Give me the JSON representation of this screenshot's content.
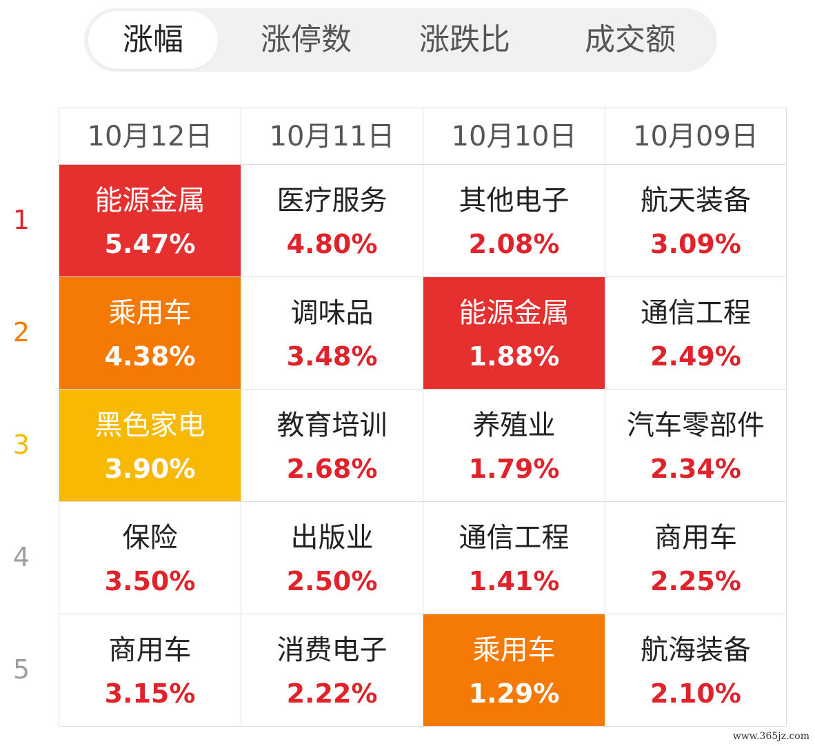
{
  "tabs": [
    {
      "label": "涨幅",
      "active": true
    },
    {
      "label": "涨停数",
      "active": false
    },
    {
      "label": "涨跌比",
      "active": false
    },
    {
      "label": "成交额",
      "active": false
    }
  ],
  "columns": [
    "10月12日",
    "10月11日",
    "10月10日",
    "10月09日"
  ],
  "ranks": [
    {
      "label": "1",
      "color": "#e0232b"
    },
    {
      "label": "2",
      "color": "#f57c00"
    },
    {
      "label": "3",
      "color": "#f6b800"
    },
    {
      "label": "4",
      "color": "#9e9e9e"
    },
    {
      "label": "5",
      "color": "#9e9e9e"
    }
  ],
  "highlight_colors": {
    "red": "#e5302f",
    "orange": "#f57a05",
    "yellow": "#f7b904"
  },
  "rows": [
    [
      {
        "name": "能源金属",
        "pct": "5.47%",
        "highlight": "red"
      },
      {
        "name": "医疗服务",
        "pct": "4.80%"
      },
      {
        "name": "其他电子",
        "pct": "2.08%"
      },
      {
        "name": "航天装备",
        "pct": "3.09%"
      }
    ],
    [
      {
        "name": "乘用车",
        "pct": "4.38%",
        "highlight": "orange"
      },
      {
        "name": "调味品",
        "pct": "3.48%"
      },
      {
        "name": "能源金属",
        "pct": "1.88%",
        "highlight": "red"
      },
      {
        "name": "通信工程",
        "pct": "2.49%"
      }
    ],
    [
      {
        "name": "黑色家电",
        "pct": "3.90%",
        "highlight": "yellow"
      },
      {
        "name": "教育培训",
        "pct": "2.68%"
      },
      {
        "name": "养殖业",
        "pct": "1.79%"
      },
      {
        "name": "汽车零部件",
        "pct": "2.34%"
      }
    ],
    [
      {
        "name": "保险",
        "pct": "3.50%"
      },
      {
        "name": "出版业",
        "pct": "2.50%"
      },
      {
        "name": "通信工程",
        "pct": "1.41%"
      },
      {
        "name": "商用车",
        "pct": "2.25%"
      }
    ],
    [
      {
        "name": "商用车",
        "pct": "3.15%"
      },
      {
        "name": "消费电子",
        "pct": "2.22%"
      },
      {
        "name": "乘用车",
        "pct": "1.29%",
        "highlight": "orange"
      },
      {
        "name": "航海装备",
        "pct": "2.10%"
      }
    ]
  ],
  "watermark": "www.365jz.com"
}
